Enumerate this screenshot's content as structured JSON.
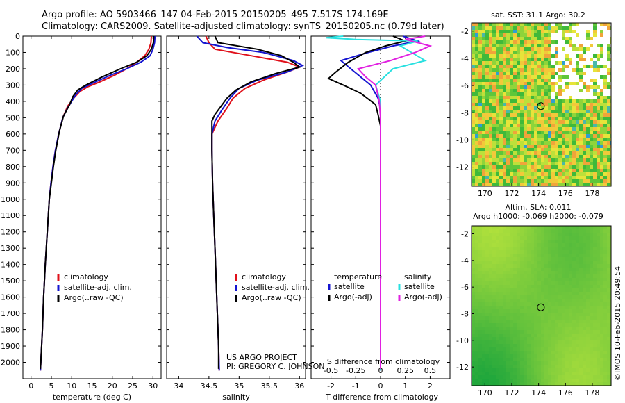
{
  "header": {
    "line1": "Argo profile: AO 5903466_147 04-Feb-2015 20150205_495 7.517S 174.169E",
    "line2": "Climatology: CARS2009. Satellite-adjusted climatology: synTS_20150205.nc (0.79d later)"
  },
  "project": {
    "line1": "US ARGO PROJECT",
    "line2": "PI: GREGORY C. JOHNSON"
  },
  "footer_stamp": "©IMOS 10-Feb-2015 20:49:54",
  "colors": {
    "climatology": "#e0101a",
    "satellite": "#1414d0",
    "argo": "#000000",
    "sat_s": "#28e0e0",
    "argo_s": "#e020e0"
  },
  "depth_ticks": [
    "0",
    "100",
    "200",
    "300",
    "400",
    "500",
    "600",
    "700",
    "800",
    "900",
    "1000",
    "1100",
    "1200",
    "1300",
    "1400",
    "1500",
    "1600",
    "1700",
    "1800",
    "1900",
    "2000"
  ],
  "legend_profiles": [
    "climatology",
    "satellite-adj. clim.",
    "Argo(..raw -QC)"
  ],
  "legend_diff": {
    "temp_head": "temperature",
    "sal_head": "salinity",
    "temp_items": [
      "satellite",
      "Argo(-adj)"
    ],
    "sal_items": [
      "satellite",
      "Argo(-adj)"
    ]
  },
  "map_sst": {
    "title": "sat. SST: 31.1  Argo: 30.2",
    "yticks": [
      "-2",
      "-4",
      "-6",
      "-8",
      "-10",
      "-12"
    ],
    "xticks": [
      "170",
      "172",
      "174",
      "176",
      "178"
    ]
  },
  "map_sla": {
    "title1": "Altim. SLA: 0.011",
    "title2": "Argo h1000: -0.069 h2000: -0.079",
    "yticks": [
      "-2",
      "-4",
      "-6",
      "-8",
      "-10",
      "-12"
    ],
    "xticks": [
      "170",
      "172",
      "174",
      "176",
      "178"
    ]
  },
  "chart_data": [
    {
      "type": "line",
      "xlabel": "temperature (deg C)",
      "xticks": [
        "0",
        "5",
        "10",
        "15",
        "20",
        "25",
        "30"
      ],
      "xlim": [
        -2,
        32
      ],
      "ylim": [
        2100,
        0
      ],
      "series": [
        {
          "name": "climatology",
          "points": [
            [
              29.6,
              0
            ],
            [
              29.5,
              40
            ],
            [
              29.0,
              80
            ],
            [
              28.0,
              120
            ],
            [
              26.0,
              160
            ],
            [
              23.5,
              200
            ],
            [
              20.5,
              240
            ],
            [
              17.0,
              280
            ],
            [
              14.0,
              310
            ],
            [
              12.0,
              340
            ],
            [
              10.5,
              380
            ],
            [
              9.0,
              430
            ],
            [
              7.8,
              500
            ],
            [
              6.8,
              600
            ],
            [
              6.0,
              700
            ],
            [
              5.4,
              800
            ],
            [
              4.9,
              900
            ],
            [
              4.5,
              1000
            ],
            [
              4.0,
              1200
            ],
            [
              3.5,
              1400
            ],
            [
              3.1,
              1600
            ],
            [
              2.8,
              1800
            ],
            [
              2.4,
              2000
            ],
            [
              2.3,
              2050
            ]
          ]
        },
        {
          "name": "satellite-adj. clim.",
          "points": [
            [
              30.5,
              0
            ],
            [
              30.4,
              40
            ],
            [
              30.0,
              80
            ],
            [
              29.3,
              120
            ],
            [
              27.0,
              160
            ],
            [
              23.5,
              200
            ],
            [
              19.5,
              240
            ],
            [
              15.0,
              290
            ],
            [
              12.5,
              320
            ],
            [
              11.0,
              360
            ],
            [
              10.0,
              400
            ],
            [
              9.0,
              440
            ],
            [
              7.8,
              500
            ],
            [
              6.8,
              600
            ],
            [
              6.0,
              700
            ],
            [
              5.4,
              800
            ],
            [
              4.9,
              900
            ],
            [
              4.5,
              1000
            ],
            [
              4.0,
              1200
            ],
            [
              3.5,
              1400
            ],
            [
              3.1,
              1600
            ],
            [
              2.8,
              1800
            ],
            [
              2.4,
              2000
            ],
            [
              2.3,
              2050
            ]
          ]
        },
        {
          "name": "Argo(..raw -QC)",
          "points": [
            [
              30.2,
              0
            ],
            [
              30.1,
              40
            ],
            [
              29.6,
              80
            ],
            [
              28.5,
              120
            ],
            [
              26.0,
              160
            ],
            [
              22.0,
              200
            ],
            [
              17.5,
              250
            ],
            [
              13.5,
              300
            ],
            [
              11.5,
              330
            ],
            [
              10.3,
              370
            ],
            [
              9.5,
              420
            ],
            [
              8.0,
              490
            ],
            [
              7.0,
              580
            ],
            [
              6.1,
              700
            ],
            [
              5.5,
              800
            ],
            [
              5.0,
              900
            ],
            [
              4.5,
              1000
            ],
            [
              4.0,
              1200
            ],
            [
              3.5,
              1400
            ],
            [
              3.1,
              1600
            ],
            [
              2.8,
              1800
            ],
            [
              2.4,
              2000
            ],
            [
              2.3,
              2040
            ]
          ]
        }
      ]
    },
    {
      "type": "line",
      "xlabel": "salinity",
      "xticks": [
        "34",
        "34.5",
        "35",
        "35.5",
        "36"
      ],
      "xlim": [
        33.8,
        36.1
      ],
      "ylim": [
        2100,
        0
      ],
      "series": [
        {
          "name": "climatology",
          "points": [
            [
              34.45,
              0
            ],
            [
              34.5,
              40
            ],
            [
              34.6,
              80
            ],
            [
              35.2,
              120
            ],
            [
              35.8,
              160
            ],
            [
              36.0,
              190
            ],
            [
              35.8,
              220
            ],
            [
              35.4,
              270
            ],
            [
              35.1,
              320
            ],
            [
              34.9,
              380
            ],
            [
              34.8,
              440
            ],
            [
              34.65,
              520
            ],
            [
              34.55,
              600
            ],
            [
              34.55,
              700
            ],
            [
              34.56,
              900
            ],
            [
              34.58,
              1100
            ],
            [
              34.6,
              1300
            ],
            [
              34.62,
              1500
            ],
            [
              34.64,
              1700
            ],
            [
              34.66,
              1900
            ],
            [
              34.67,
              2050
            ]
          ]
        },
        {
          "name": "satellite-adj. clim.",
          "points": [
            [
              34.3,
              0
            ],
            [
              34.4,
              40
            ],
            [
              34.8,
              70
            ],
            [
              35.4,
              100
            ],
            [
              35.9,
              150
            ],
            [
              36.05,
              180
            ],
            [
              35.8,
              220
            ],
            [
              35.3,
              270
            ],
            [
              35.0,
              320
            ],
            [
              34.85,
              380
            ],
            [
              34.72,
              450
            ],
            [
              34.6,
              520
            ],
            [
              34.55,
              600
            ],
            [
              34.55,
              700
            ],
            [
              34.56,
              900
            ],
            [
              34.58,
              1100
            ],
            [
              34.6,
              1300
            ],
            [
              34.62,
              1500
            ],
            [
              34.64,
              1700
            ],
            [
              34.66,
              1900
            ],
            [
              34.67,
              2050
            ]
          ]
        },
        {
          "name": "Argo(..raw -QC)",
          "points": [
            [
              34.6,
              0
            ],
            [
              34.65,
              40
            ],
            [
              35.3,
              80
            ],
            [
              35.7,
              120
            ],
            [
              35.9,
              160
            ],
            [
              36.0,
              190
            ],
            [
              35.6,
              230
            ],
            [
              35.2,
              280
            ],
            [
              34.95,
              330
            ],
            [
              34.8,
              380
            ],
            [
              34.7,
              430
            ],
            [
              34.6,
              480
            ],
            [
              34.55,
              520
            ],
            [
              34.55,
              700
            ],
            [
              34.56,
              900
            ],
            [
              34.58,
              1100
            ],
            [
              34.6,
              1300
            ],
            [
              34.62,
              1500
            ],
            [
              34.64,
              1700
            ],
            [
              34.66,
              1900
            ],
            [
              34.66,
              2040
            ]
          ]
        }
      ]
    },
    {
      "type": "line",
      "xlabel_bottom": "T difference from climatology",
      "xlabel_top": "S difference from climatology",
      "xticks_bottom": [
        "-2",
        "-1",
        "0",
        "1",
        "2"
      ],
      "xticks_top": [
        "-0.5",
        "-0.25",
        "0",
        "0.25",
        "0.5"
      ],
      "xlim": [
        -2.8,
        2.8
      ],
      "ylim": [
        2100,
        0
      ],
      "series": [
        {
          "name": "temperature satellite",
          "points": [
            [
              0.9,
              0
            ],
            [
              1.5,
              30
            ],
            [
              0.5,
              60
            ],
            [
              -0.5,
              100
            ],
            [
              -1.6,
              150
            ],
            [
              -1.2,
              200
            ],
            [
              -0.8,
              250
            ],
            [
              -0.4,
              300
            ],
            [
              -0.1,
              380
            ],
            [
              0.0,
              450
            ],
            [
              0.0,
              600
            ],
            [
              0.0,
              2050
            ]
          ]
        },
        {
          "name": "temperature Argo(-adj)",
          "points": [
            [
              0.5,
              0
            ],
            [
              1.0,
              30
            ],
            [
              0.2,
              60
            ],
            [
              -0.6,
              100
            ],
            [
              -1.3,
              160
            ],
            [
              -1.8,
              220
            ],
            [
              -2.1,
              260
            ],
            [
              -1.5,
              300
            ],
            [
              -0.8,
              350
            ],
            [
              -0.2,
              420
            ],
            [
              -0.1,
              480
            ],
            [
              0.0,
              550
            ],
            [
              0.0,
              2040
            ]
          ]
        },
        {
          "name": "salinity satellite",
          "points": [
            [
              -1.5,
              0
            ],
            [
              -2.2,
              10
            ],
            [
              -1.0,
              20
            ],
            [
              1.5,
              30
            ],
            [
              0.8,
              60
            ],
            [
              1.8,
              150
            ],
            [
              0.5,
              200
            ],
            [
              -0.2,
              300
            ],
            [
              0.0,
              400
            ],
            [
              0.0,
              600
            ],
            [
              0.0,
              2050
            ]
          ]
        },
        {
          "name": "salinity Argo(-adj)",
          "points": [
            [
              1.8,
              0
            ],
            [
              1.0,
              20
            ],
            [
              2.0,
              60
            ],
            [
              1.4,
              100
            ],
            [
              0.4,
              150
            ],
            [
              -0.9,
              200
            ],
            [
              -0.6,
              250
            ],
            [
              -0.2,
              300
            ],
            [
              -0.05,
              400
            ],
            [
              0.0,
              500
            ],
            [
              0.0,
              2040
            ]
          ]
        }
      ]
    }
  ]
}
